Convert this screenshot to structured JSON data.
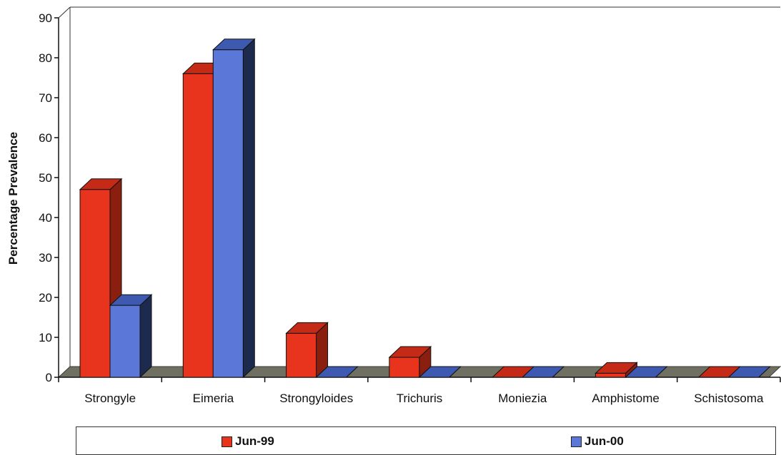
{
  "chart_data": {
    "type": "bar",
    "title": "",
    "xlabel": "",
    "ylabel": "Percentage Prevalence",
    "ylim": [
      0,
      90
    ],
    "yticks": [
      0,
      10,
      20,
      30,
      40,
      50,
      60,
      70,
      80,
      90
    ],
    "categories": [
      "Strongyle",
      "Eimeria",
      "Strongyloides",
      "Trichuris",
      "Moniezia",
      "Amphistome",
      "Schistosoma"
    ],
    "series": [
      {
        "name": "Jun-99",
        "color": "#e8341c",
        "side_color": "#8a1f10",
        "top_color": "#c42a16",
        "values": [
          47,
          76,
          11,
          5,
          0,
          1,
          0
        ]
      },
      {
        "name": "Jun-00",
        "color": "#5b78d8",
        "side_color": "#1c2a4e",
        "top_color": "#3d59b0",
        "values": [
          18,
          82,
          0,
          0,
          0,
          0,
          0
        ]
      }
    ],
    "legend_position": "bottom",
    "grid": false,
    "style": "3d"
  }
}
